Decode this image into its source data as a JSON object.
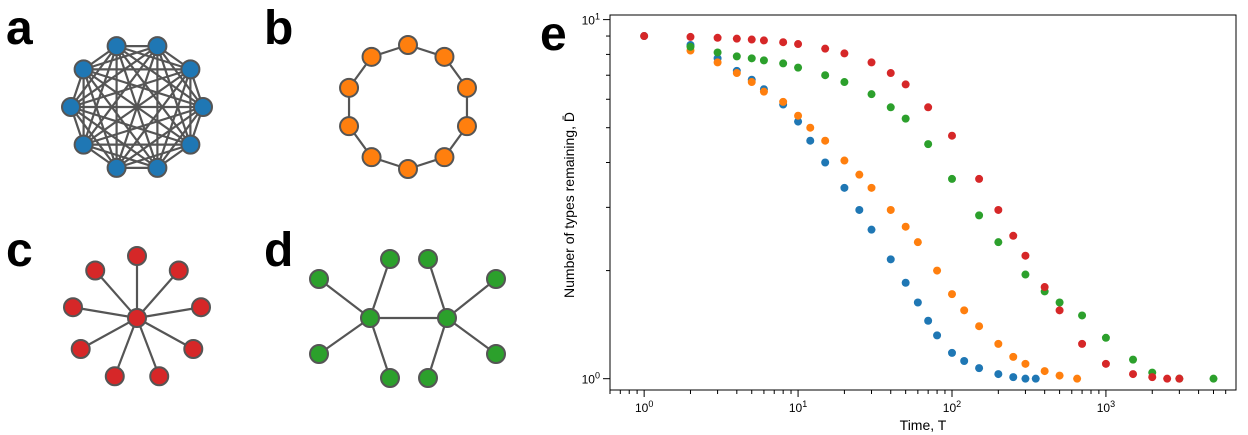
{
  "panels": {
    "a": {
      "label": "a",
      "graph": "complete",
      "nodes": 10,
      "color": "#1f77b4"
    },
    "b": {
      "label": "b",
      "graph": "cycle",
      "nodes": 10,
      "color": "#ff7f0e"
    },
    "c": {
      "label": "c",
      "graph": "star",
      "nodes": 10,
      "color": "#d62728"
    },
    "d": {
      "label": "d",
      "graph": "double-star",
      "nodes": 10,
      "color": "#2ca02c"
    },
    "e": {
      "label": "e"
    }
  },
  "edge_color": "#555555",
  "node_stroke": "#555555",
  "chart_data": {
    "type": "scatter",
    "xscale": "log",
    "yscale": "log",
    "xlabel": "Time, T",
    "ylabel": "Number of types remaining, D̄",
    "xlim": [
      0.6,
      7000
    ],
    "ylim": [
      0.93,
      10.3
    ],
    "xticks": [
      {
        "base": "10",
        "exp": "0"
      },
      {
        "base": "10",
        "exp": "1"
      },
      {
        "base": "10",
        "exp": "2"
      },
      {
        "base": "10",
        "exp": "3"
      }
    ],
    "yticks": [
      {
        "base": "10",
        "exp": "0"
      },
      {
        "base": "10",
        "exp": "1"
      }
    ],
    "grid": false,
    "legend": "none",
    "series": [
      {
        "color": "#1f77b4",
        "x": [
          1,
          2,
          3,
          4,
          5,
          6,
          8,
          10,
          12,
          15,
          20,
          25,
          30,
          40,
          50,
          60,
          70,
          80,
          100,
          120,
          150,
          200,
          250,
          300,
          350
        ],
        "y": [
          9,
          8.5,
          7.8,
          7.2,
          6.8,
          6.4,
          5.8,
          5.2,
          4.6,
          4.0,
          3.4,
          2.95,
          2.6,
          2.15,
          1.85,
          1.63,
          1.45,
          1.32,
          1.18,
          1.12,
          1.07,
          1.03,
          1.01,
          1.0,
          1.0
        ]
      },
      {
        "color": "#ff7f0e",
        "x": [
          2,
          3,
          4,
          5,
          6,
          8,
          10,
          12,
          15,
          20,
          25,
          30,
          40,
          50,
          60,
          80,
          100,
          120,
          150,
          200,
          250,
          300,
          400,
          500,
          650
        ],
        "y": [
          8.2,
          7.6,
          7.1,
          6.7,
          6.3,
          5.9,
          5.4,
          5.0,
          4.6,
          4.05,
          3.7,
          3.4,
          2.95,
          2.65,
          2.4,
          2.0,
          1.72,
          1.55,
          1.4,
          1.25,
          1.15,
          1.1,
          1.05,
          1.02,
          1.0
        ]
      },
      {
        "color": "#2ca02c",
        "x": [
          2,
          3,
          4,
          5,
          6,
          8,
          10,
          15,
          20,
          30,
          40,
          50,
          70,
          100,
          150,
          200,
          300,
          400,
          500,
          700,
          1000,
          1500,
          2000,
          3000,
          5000
        ],
        "y": [
          8.4,
          8.1,
          7.9,
          7.8,
          7.7,
          7.55,
          7.35,
          7.0,
          6.7,
          6.2,
          5.7,
          5.3,
          4.5,
          3.6,
          2.85,
          2.4,
          1.95,
          1.75,
          1.63,
          1.5,
          1.3,
          1.13,
          1.04,
          1.0,
          1.0
        ]
      },
      {
        "color": "#d62728",
        "x": [
          1,
          2,
          3,
          4,
          5,
          6,
          8,
          10,
          15,
          20,
          30,
          40,
          50,
          70,
          100,
          150,
          200,
          250,
          300,
          400,
          500,
          700,
          1000,
          1500,
          2000,
          2500,
          3000
        ],
        "y": [
          9,
          8.95,
          8.9,
          8.85,
          8.8,
          8.75,
          8.65,
          8.55,
          8.3,
          8.05,
          7.6,
          7.1,
          6.6,
          5.7,
          4.75,
          3.6,
          2.95,
          2.5,
          2.2,
          1.8,
          1.55,
          1.25,
          1.1,
          1.03,
          1.01,
          1.0,
          1.0
        ]
      }
    ]
  }
}
